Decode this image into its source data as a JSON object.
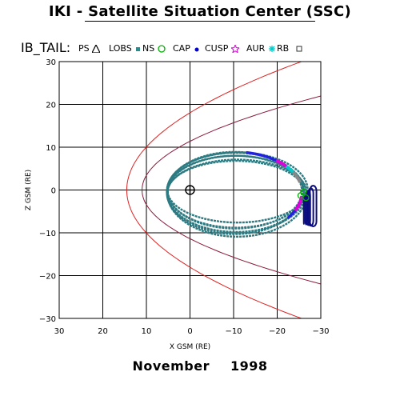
{
  "header": {
    "title": "IKI - Satellite Situation Center (SSC)"
  },
  "legend": {
    "satellite": "IB_TAIL:",
    "items": [
      {
        "label": "PS",
        "symbol": "triangle-icon",
        "color": "#000000"
      },
      {
        "label": "LOBS",
        "symbol": "square-icon",
        "color": "#2a8c8c"
      },
      {
        "label": "NS",
        "symbol": "circle-icon",
        "color": "#00b000"
      },
      {
        "label": "CAP",
        "symbol": "dot-icon",
        "color": "#0000cc"
      },
      {
        "label": "CUSP",
        "symbol": "star-icon",
        "color": "#dd00dd"
      },
      {
        "label": "AUR",
        "symbol": "asterisk-icon",
        "color": "#00cccc"
      },
      {
        "label": "RB",
        "symbol": "square-outline-icon",
        "color": "#333333"
      }
    ]
  },
  "footer": {
    "month": "November",
    "year": "1998"
  },
  "chart_data": {
    "type": "scatter",
    "title": "IKI - Satellite Situation Center (SSC)",
    "xlabel": "X GSM (RE)",
    "ylabel": "Z GSM (RE)",
    "xlim": [
      30,
      -30
    ],
    "ylim": [
      -30,
      30
    ],
    "xticks": [
      30,
      20,
      10,
      0,
      -10,
      -20,
      -30
    ],
    "yticks": [
      30,
      20,
      10,
      0,
      -10,
      -20,
      -30
    ],
    "xtick_labels": [
      "30",
      "20",
      "10",
      "0",
      "−10",
      "−20",
      "−30"
    ],
    "ytick_labels": [
      "30",
      "20",
      "10",
      "0",
      "−10",
      "−20",
      "−30"
    ],
    "grid": true,
    "colors": {
      "magnetopause": "#8b1a3a",
      "bow_shock": "#dd2222",
      "orbit": "#2d7b82",
      "tail_end": "#0b0b80",
      "dayside_upper": "#2222dd",
      "cusp": "#dd00dd",
      "aurora": "#00cccc",
      "gray_segment": "#888888",
      "ns_marker": "#00b000"
    },
    "bow_shock": {
      "nose_x": 14.5,
      "flank_factor": 0.0445,
      "x_range": [
        -7,
        14.5
      ]
    },
    "magnetopause": {
      "nose_x": 11,
      "flank_factor": 0.085,
      "x_range": [
        -30,
        11
      ]
    },
    "orbits": [
      {
        "cx": -10.2,
        "cz": -0.5,
        "a": 15.5,
        "b_up": 9.4,
        "b_down": 9.8
      },
      {
        "cx": -10.4,
        "cz": -0.3,
        "a": 15.7,
        "b_up": 9.0,
        "b_down": 9.6
      },
      {
        "cx": -10.6,
        "cz": -0.6,
        "a": 15.9,
        "b_up": 8.6,
        "b_down": 9.2
      },
      {
        "cx": -10.3,
        "cz": -0.2,
        "a": 15.4,
        "b_up": 8.2,
        "b_down": 8.8
      },
      {
        "cx": -10.8,
        "cz": -0.7,
        "a": 16.0,
        "b_up": 7.8,
        "b_down": 10.2
      },
      {
        "cx": -10.5,
        "cz": -0.4,
        "a": 15.6,
        "b_up": 7.2,
        "b_down": 8.4
      },
      {
        "cx": -10.9,
        "cz": 0.0,
        "a": 16.1,
        "b_up": 8.8,
        "b_down": 7.6
      }
    ],
    "tail_region": {
      "x_range": [
        -27.5,
        -26.0
      ],
      "z_range": [
        -8.5,
        1.0
      ]
    },
    "ns_points": [
      {
        "x": -26.0,
        "z": -0.5
      },
      {
        "x": -25.4,
        "z": -1.3
      },
      {
        "x": -26.6,
        "z": -1.8
      }
    ],
    "earth": {
      "x": 0,
      "z": 0
    }
  }
}
